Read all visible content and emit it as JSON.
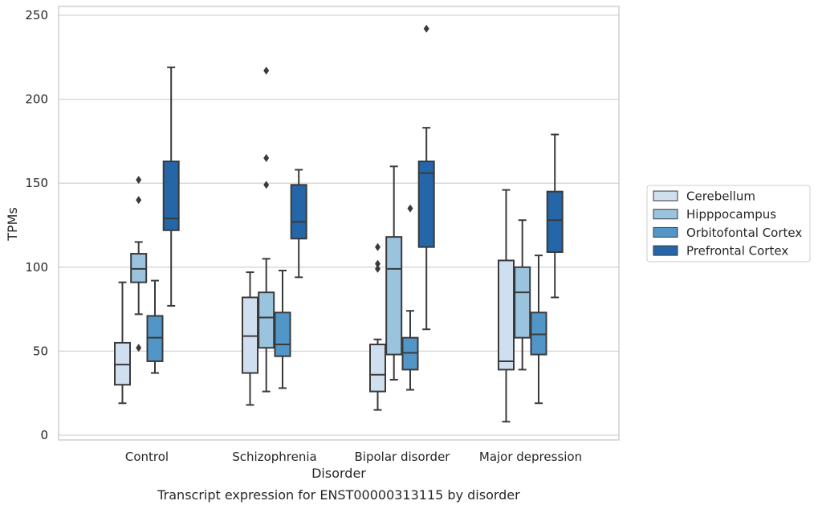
{
  "caption": "Transcript expression for ENST00000313115 by disorder",
  "chart_data": {
    "type": "box",
    "title": "",
    "xlabel": "Disorder",
    "ylabel": "TPMs",
    "ylim": [
      -3,
      253
    ],
    "yticks": [
      0,
      50,
      100,
      150,
      200,
      250
    ],
    "grid": "horizontal",
    "legend_position": "right",
    "categories": [
      "Control",
      "Schizophrenia",
      "Bipolar disorder",
      "Major depression"
    ],
    "series": [
      {
        "name": "Cerebellum",
        "color": "#d0dff0",
        "boxes": [
          {
            "whisker_low": 19,
            "q1": 30,
            "median": 42,
            "q3": 55,
            "whisker_high": 91,
            "outliers": []
          },
          {
            "whisker_low": 18,
            "q1": 37,
            "median": 59,
            "q3": 82,
            "whisker_high": 97,
            "outliers": []
          },
          {
            "whisker_low": 15,
            "q1": 26,
            "median": 36,
            "q3": 54,
            "whisker_high": 57,
            "outliers": [
              99,
              102,
              112
            ]
          },
          {
            "whisker_low": 8,
            "q1": 39,
            "median": 44,
            "q3": 104,
            "whisker_high": 146,
            "outliers": []
          }
        ]
      },
      {
        "name": "Hipppocampus",
        "color": "#9ac3de",
        "boxes": [
          {
            "whisker_low": 72,
            "q1": 91,
            "median": 99,
            "q3": 108,
            "whisker_high": 115,
            "outliers": [
              52,
              140,
              152
            ]
          },
          {
            "whisker_low": 26,
            "q1": 52,
            "median": 70,
            "q3": 85,
            "whisker_high": 105,
            "outliers": [
              149,
              165,
              217
            ]
          },
          {
            "whisker_low": 33,
            "q1": 48,
            "median": 99,
            "q3": 118,
            "whisker_high": 160,
            "outliers": []
          },
          {
            "whisker_low": 39,
            "q1": 58,
            "median": 85,
            "q3": 100,
            "whisker_high": 128,
            "outliers": []
          }
        ]
      },
      {
        "name": "Orbitofontal Cortex",
        "color": "#5296c7",
        "boxes": [
          {
            "whisker_low": 37,
            "q1": 44,
            "median": 58,
            "q3": 71,
            "whisker_high": 92,
            "outliers": []
          },
          {
            "whisker_low": 28,
            "q1": 47,
            "median": 54,
            "q3": 73,
            "whisker_high": 98,
            "outliers": []
          },
          {
            "whisker_low": 27,
            "q1": 39,
            "median": 49,
            "q3": 58,
            "whisker_high": 74,
            "outliers": [
              135
            ]
          },
          {
            "whisker_low": 19,
            "q1": 48,
            "median": 60,
            "q3": 73,
            "whisker_high": 107,
            "outliers": []
          }
        ]
      },
      {
        "name": "Prefrontal Cortex",
        "color": "#2466a8",
        "boxes": [
          {
            "whisker_low": 77,
            "q1": 122,
            "median": 129,
            "q3": 163,
            "whisker_high": 219,
            "outliers": []
          },
          {
            "whisker_low": 94,
            "q1": 117,
            "median": 127,
            "q3": 149,
            "whisker_high": 158,
            "outliers": []
          },
          {
            "whisker_low": 63,
            "q1": 112,
            "median": 156,
            "q3": 163,
            "whisker_high": 183,
            "outliers": [
              242
            ]
          },
          {
            "whisker_low": 82,
            "q1": 109,
            "median": 128,
            "q3": 145,
            "whisker_high": 179,
            "outliers": []
          }
        ]
      }
    ]
  },
  "colors": {
    "grid": "#d5d5d5",
    "frame": "#c8c8c8",
    "line": "#3a3a3a"
  }
}
